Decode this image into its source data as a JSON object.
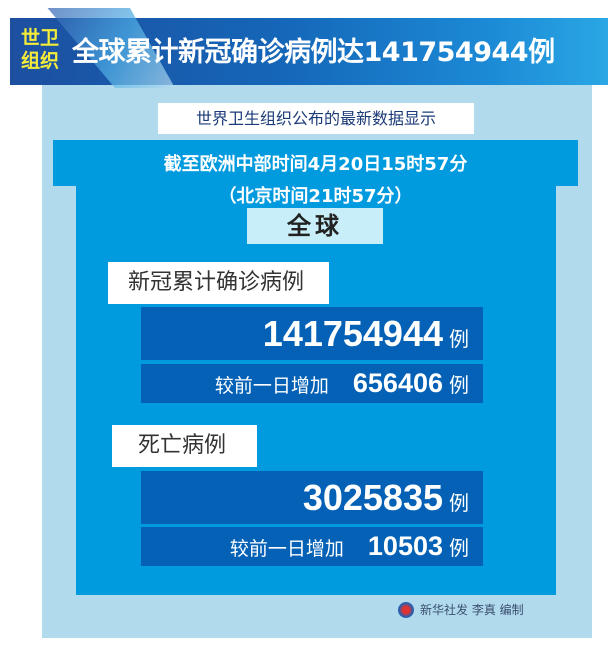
{
  "header": {
    "tag": "世卫组织",
    "title": "全球累计新冠确诊病例达141754944例"
  },
  "subtitle": "世界卫生组织公布的最新数据显示",
  "date": {
    "line1": "截至欧洲中部时间4月20日15时57分",
    "line2": "（北京时间21时57分）"
  },
  "region": "全球",
  "confirmed": {
    "label": "新冠累计确诊病例",
    "total": "141754944",
    "unit": "例",
    "increase_label": "较前一日增加",
    "increase": "656406",
    "increase_unit": "例"
  },
  "deaths": {
    "label": "死亡病例",
    "total": "3025835",
    "unit": "例",
    "increase_label": "较前一日增加",
    "increase": "10503",
    "increase_unit": "例"
  },
  "credit": "新华社发 李真 编制",
  "colors": {
    "panel": "#b1daec",
    "band": "#009ade",
    "box": "#0461b5",
    "tag": "#f5ec3a"
  }
}
